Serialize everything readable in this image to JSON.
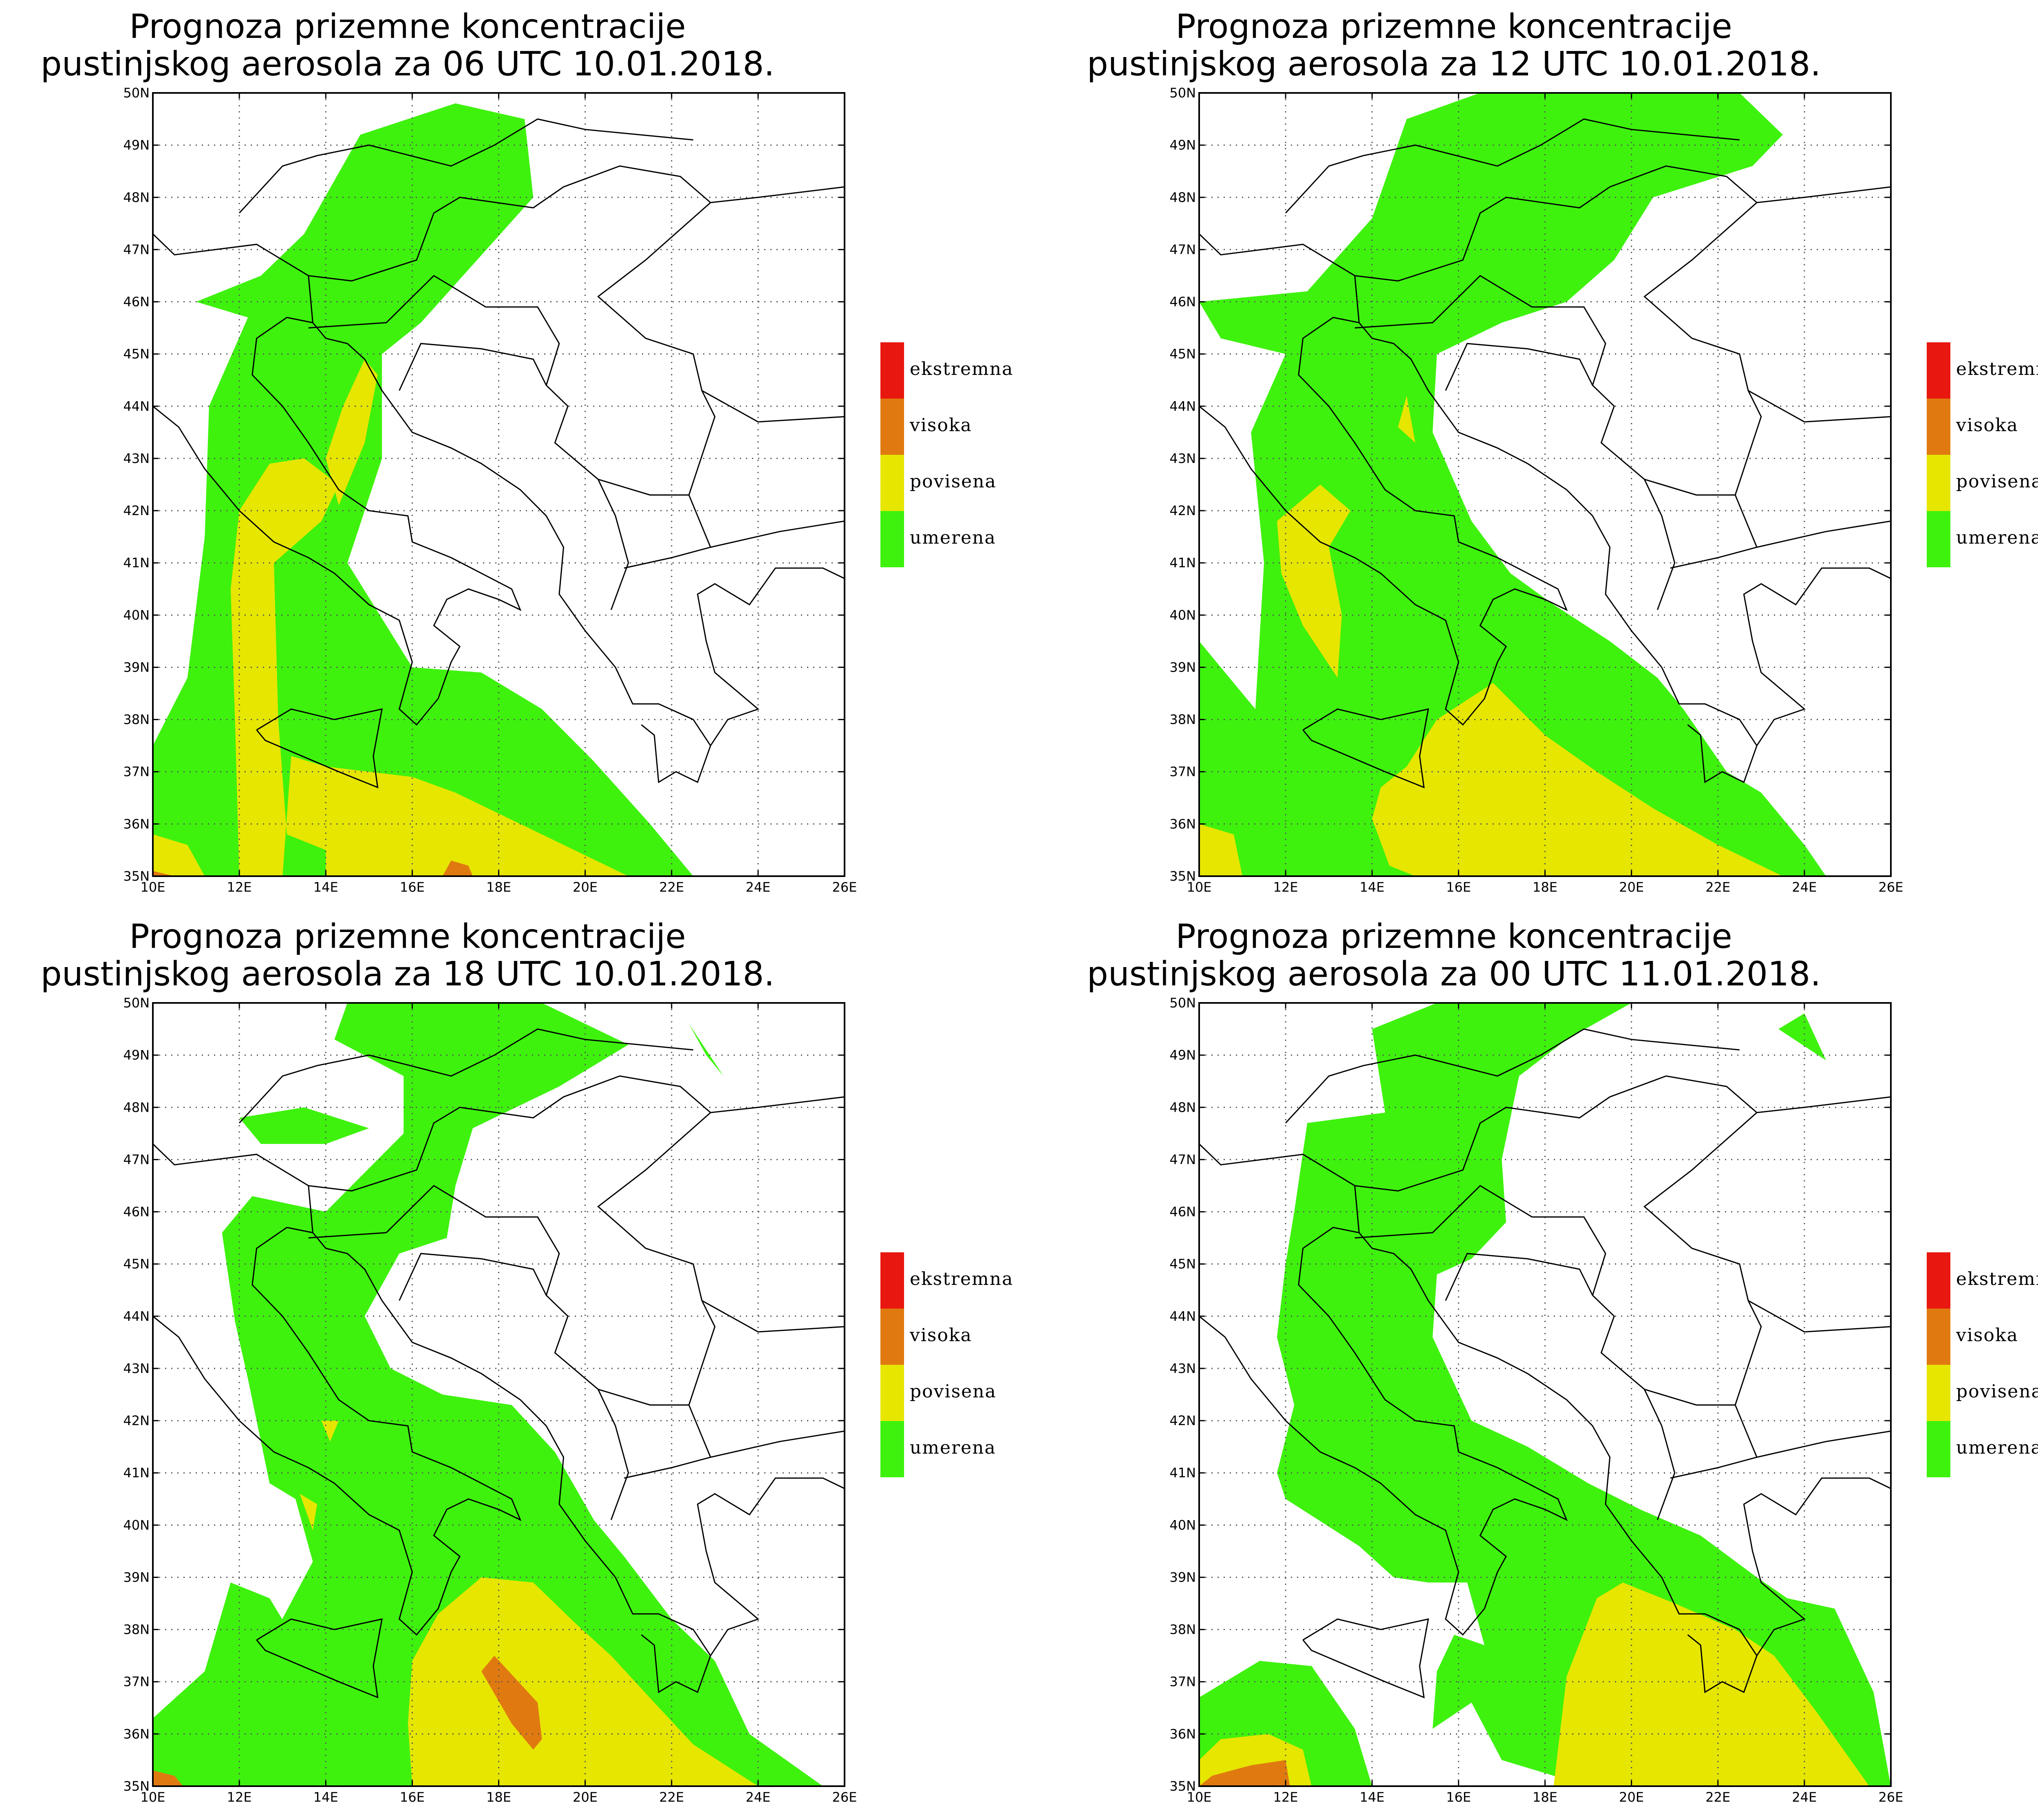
{
  "panels": [
    {
      "title_line1": "Prognoza prizemne koncentracije",
      "title_line2": "pustinjskog aerosola za 06 UTC 10.01.2018.",
      "pattern": "a"
    },
    {
      "title_line1": "Prognoza prizemne koncentracije",
      "title_line2": "pustinjskog aerosola za 12 UTC 10.01.2018.",
      "pattern": "b"
    },
    {
      "title_line1": "Prognoza prizemne koncentracije",
      "title_line2": "pustinjskog aerosola za 18 UTC 10.01.2018.",
      "pattern": "c"
    },
    {
      "title_line1": "Prognoza prizemne koncentracije",
      "title_line2": "pustinjskog aerosola za 00 UTC 11.01.2018.",
      "pattern": "d"
    }
  ],
  "legend": [
    {
      "label": "ekstremna",
      "color": "#e8170f"
    },
    {
      "label": "visoka",
      "color": "#e07a10"
    },
    {
      "label": "povisena",
      "color": "#e6e600"
    },
    {
      "label": "umerena",
      "color": "#3ef20d"
    }
  ],
  "axes": {
    "lon_labels": [
      "10E",
      "12E",
      "14E",
      "16E",
      "18E",
      "20E",
      "22E",
      "24E",
      "26E"
    ],
    "lat_labels": [
      "35N",
      "36N",
      "37N",
      "38N",
      "39N",
      "40N",
      "41N",
      "42N",
      "43N",
      "44N",
      "45N",
      "46N",
      "47N",
      "48N",
      "49N",
      "50N"
    ],
    "lon_range": [
      10,
      26
    ],
    "lat_range": [
      35,
      50
    ]
  },
  "colors": {
    "green": "#3ef20d",
    "yellow": "#e6e600",
    "orange": "#e07a10",
    "border": "#000000",
    "grid": "#555555"
  }
}
